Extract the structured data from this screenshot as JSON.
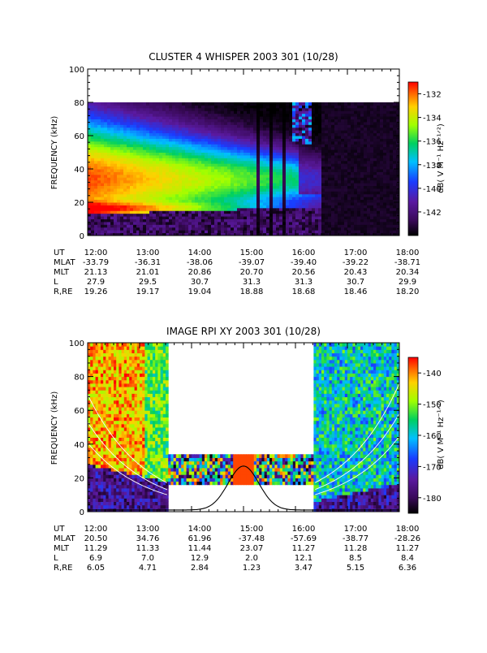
{
  "chart_data": [
    {
      "type": "heatmap",
      "title": "CLUSTER 4 WHISPER 2003 301 (10/28)",
      "ylabel": "FREQUENCY (kHz)",
      "colorbar_label": "dB( V M⁻¹ Hz⁻¹ᐟ²)",
      "ylim": [
        0,
        100
      ],
      "yticks": [
        0,
        20,
        40,
        60,
        80,
        100
      ],
      "data_fmax": 80,
      "colorbar_ticks": [
        -132,
        -134,
        -136,
        -138,
        -140,
        -142
      ],
      "colorbar_range": [
        -144,
        -131
      ],
      "ephemeris_labels": [
        "UT",
        "MLAT",
        "MLT",
        "L",
        "R,RE"
      ],
      "ephemeris": {
        "UT": [
          "12:00",
          "13:00",
          "14:00",
          "15:00",
          "16:00",
          "17:00",
          "18:00"
        ],
        "MLAT": [
          "-33.79",
          "-36.31",
          "-38.06",
          "-39.07",
          "-39.40",
          "-39.22",
          "-38.71"
        ],
        "MLT": [
          "21.13",
          "21.01",
          "20.86",
          "20.70",
          "20.56",
          "20.43",
          "20.34"
        ],
        "L": [
          "27.9",
          "29.5",
          "30.7",
          "31.3",
          "31.3",
          "30.7",
          "29.9"
        ],
        "R,RE": [
          "19.26",
          "19.17",
          "19.04",
          "18.88",
          "18.68",
          "18.46",
          "18.20"
        ]
      }
    },
    {
      "type": "heatmap",
      "title": "IMAGE RPI XY 2003 301 (10/28)",
      "ylabel": "FREQUENCY (kHz)",
      "colorbar_label": "dB( V M⁻¹ Hz⁻¹ᐟ²)",
      "ylim": [
        0,
        100
      ],
      "yticks": [
        0,
        20,
        40,
        60,
        80,
        100
      ],
      "colorbar_ticks": [
        -140,
        -150,
        -160,
        -170,
        -180
      ],
      "colorbar_range": [
        -185,
        -135
      ],
      "ephemeris_labels": [
        "UT",
        "MLAT",
        "MLT",
        "L",
        "R,RE"
      ],
      "ephemeris": {
        "UT": [
          "12:00",
          "13:00",
          "14:00",
          "15:00",
          "16:00",
          "17:00",
          "18:00"
        ],
        "MLAT": [
          "20.50",
          "34.76",
          "61.96",
          "-37.48",
          "-57.69",
          "-38.77",
          "-28.26"
        ],
        "MLT": [
          "11.29",
          "11.33",
          "11.44",
          "23.07",
          "11.27",
          "11.28",
          "11.27"
        ],
        "L": [
          "6.9",
          "7.0",
          "12.9",
          "2.0",
          "12.1",
          "8.5",
          "8.4"
        ],
        "R,RE": [
          "6.05",
          "4.71",
          "2.84",
          "1.23",
          "3.47",
          "5.15",
          "6.36"
        ]
      },
      "gaps": [
        {
          "t_start": "13:32",
          "t_end": "16:22",
          "f_low": 33,
          "f_high": 100
        },
        {
          "t_start": "13:32",
          "t_end": "16:22",
          "f_low": 0,
          "f_high": 17
        }
      ]
    }
  ]
}
